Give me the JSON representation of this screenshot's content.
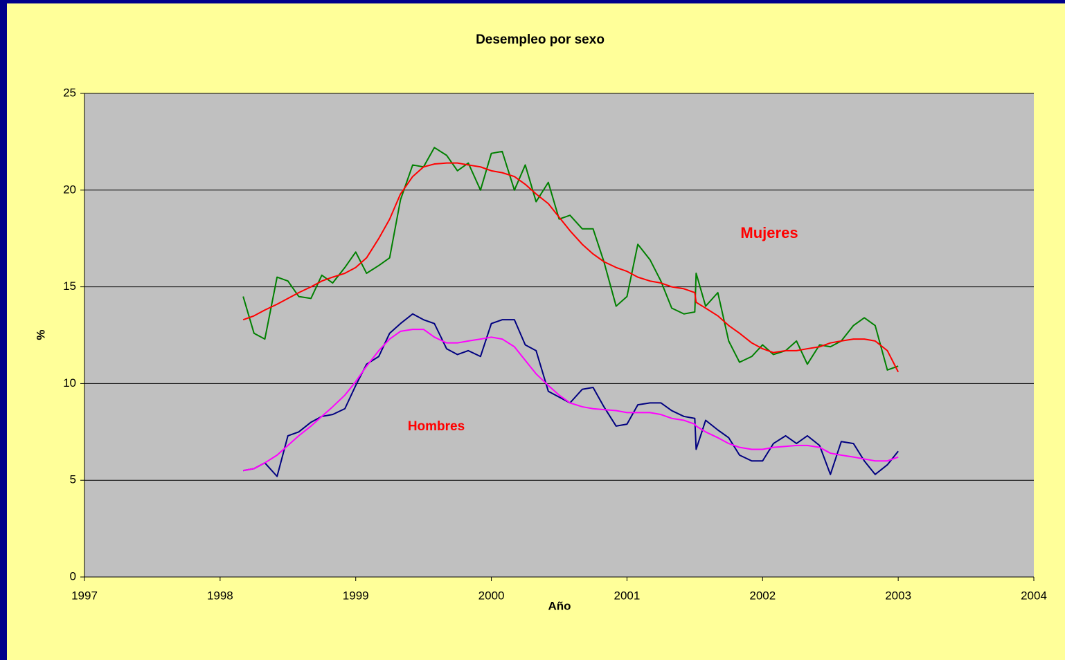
{
  "chart_data": {
    "type": "line",
    "title": "Desempleo por sexo",
    "x_label": "Año",
    "y_label": "%",
    "annotations": [
      "Mujeres",
      "Hombres"
    ],
    "x": [
      1998.17,
      1998.25,
      1998.33,
      1998.42,
      1998.5,
      1998.58,
      1998.67,
      1998.75,
      1998.83,
      1998.92,
      1999,
      1999.08,
      1999.17,
      1999.25,
      1999.33,
      1999.42,
      1999.5,
      1999.58,
      1999.67,
      1999.75,
      1999.83,
      1999.92,
      2000,
      2000.08,
      2000.17,
      2000.25,
      2000.33,
      2000.42,
      2000.5,
      2000.58,
      2000.67,
      2000.75,
      2000.83,
      2000.92,
      2001,
      2001.08,
      2001.17,
      2001.25,
      2001.33,
      2001.42,
      2001.5,
      2001.51,
      2001.58,
      2001.67,
      2001.75,
      2001.83,
      2001.92,
      2002,
      2002.08,
      2002.17,
      2002.25,
      2002.33,
      2002.42,
      2002.5,
      2002.58,
      2002.67,
      2002.75,
      2002.83,
      2002.92,
      2003
    ],
    "series": [
      {
        "color": "#008000",
        "values": [
          14.5,
          12.6,
          12.3,
          15.5,
          15.3,
          14.5,
          14.4,
          15.6,
          15.2,
          16.0,
          16.8,
          15.7,
          16.1,
          16.5,
          19.5,
          21.3,
          21.2,
          22.2,
          21.8,
          21.0,
          21.4,
          20.0,
          21.9,
          22.0,
          20.0,
          21.3,
          19.4,
          20.4,
          18.5,
          18.7,
          18.0,
          18.0,
          16.3,
          14.0,
          14.5,
          17.2,
          16.4,
          15.3,
          13.9,
          13.6,
          13.7,
          15.7,
          14.0,
          14.7,
          12.2,
          11.1,
          11.4,
          12.0,
          11.5,
          11.7,
          12.2,
          11.0,
          12.0,
          11.9,
          12.2,
          13.0,
          13.4,
          13.0,
          10.7,
          10.9
        ]
      },
      {
        "color": "#ff0000",
        "values": [
          13.3,
          13.5,
          13.8,
          14.1,
          14.4,
          14.7,
          15.0,
          15.3,
          15.5,
          15.7,
          16.0,
          16.5,
          17.5,
          18.5,
          19.8,
          20.7,
          21.2,
          21.35,
          21.4,
          21.4,
          21.3,
          21.2,
          21.0,
          20.9,
          20.7,
          20.3,
          19.8,
          19.3,
          18.6,
          17.9,
          17.2,
          16.7,
          16.3,
          16.0,
          15.8,
          15.5,
          15.3,
          15.2,
          15.0,
          14.9,
          14.7,
          14.2,
          13.9,
          13.5,
          13.0,
          12.6,
          12.1,
          11.8,
          11.6,
          11.7,
          11.7,
          11.8,
          11.9,
          12.1,
          12.2,
          12.3,
          12.3,
          12.2,
          11.7,
          10.6
        ]
      },
      {
        "color": "#000080",
        "values": [
          5.5,
          5.6,
          5.9,
          5.2,
          7.3,
          7.5,
          8.0,
          8.3,
          8.4,
          8.7,
          9.9,
          11.0,
          11.4,
          12.6,
          13.1,
          13.6,
          13.3,
          13.1,
          11.8,
          11.5,
          11.7,
          11.4,
          13.1,
          13.3,
          13.3,
          12.0,
          11.7,
          9.6,
          9.3,
          9.0,
          9.7,
          9.8,
          8.8,
          7.8,
          7.9,
          8.9,
          9.0,
          9.0,
          8.6,
          8.3,
          8.2,
          6.6,
          8.1,
          7.6,
          7.2,
          6.3,
          6.0,
          6.0,
          6.9,
          7.3,
          6.9,
          7.3,
          6.8,
          5.3,
          7.0,
          6.9,
          6.0,
          5.3,
          5.8,
          6.5
        ]
      },
      {
        "color": "#ff00ff",
        "values": [
          5.5,
          5.6,
          5.9,
          6.3,
          6.8,
          7.3,
          7.8,
          8.3,
          8.8,
          9.4,
          10.1,
          10.9,
          11.7,
          12.3,
          12.7,
          12.8,
          12.8,
          12.4,
          12.1,
          12.1,
          12.2,
          12.3,
          12.4,
          12.3,
          11.9,
          11.2,
          10.5,
          9.9,
          9.4,
          9.0,
          8.8,
          8.7,
          8.65,
          8.6,
          8.5,
          8.5,
          8.5,
          8.4,
          8.2,
          8.1,
          7.9,
          7.8,
          7.5,
          7.2,
          6.9,
          6.7,
          6.6,
          6.6,
          6.7,
          6.75,
          6.8,
          6.8,
          6.7,
          6.4,
          6.3,
          6.2,
          6.1,
          6.0,
          6.0,
          6.2
        ]
      }
    ],
    "xlim": [
      1997,
      2004
    ],
    "xticks": [
      1997,
      1998,
      1999,
      2000,
      2001,
      2002,
      2003,
      2004
    ],
    "ylim": [
      0,
      25
    ],
    "yticks": [
      0,
      5,
      10,
      15,
      20,
      25
    ],
    "grid": true
  }
}
